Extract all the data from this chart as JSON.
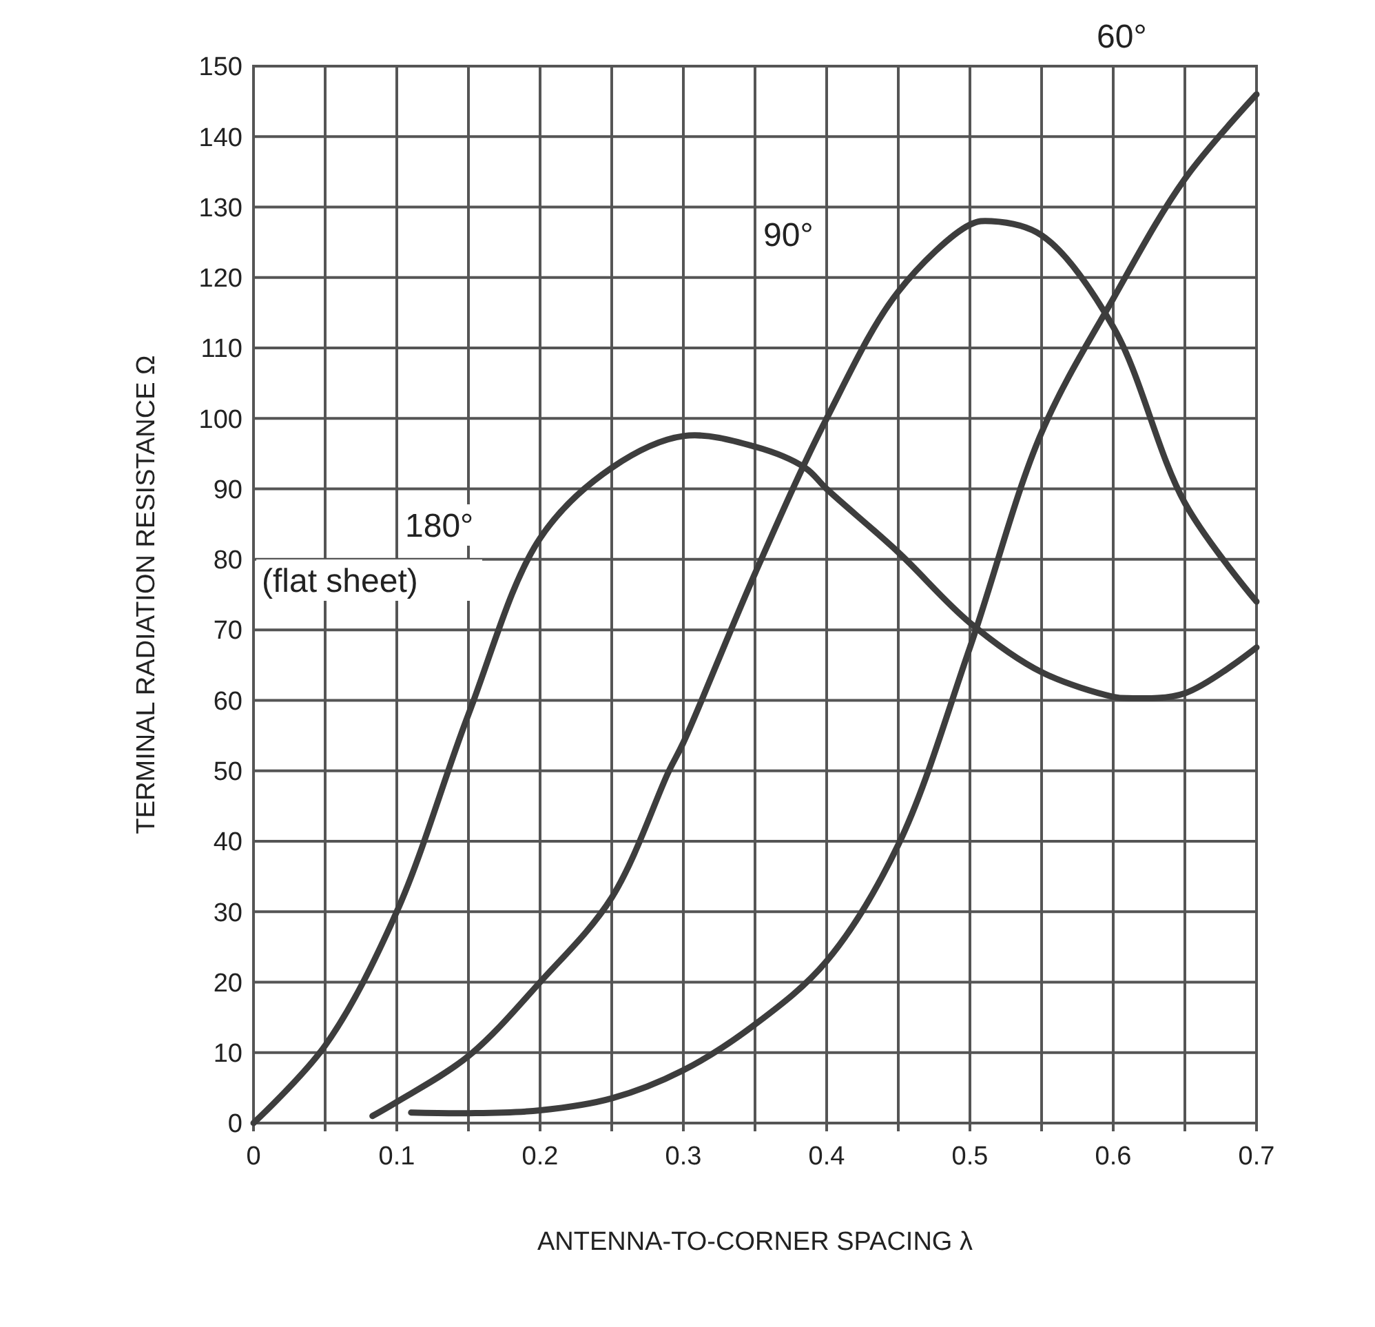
{
  "chart_data": {
    "type": "line",
    "xlabel": "ANTENNA-TO-CORNER SPACING λ",
    "ylabel": "TERMINAL RADIATION RESISTANCE Ω",
    "xlim": [
      0,
      0.7
    ],
    "ylim": [
      0,
      150
    ],
    "xticks": [
      0,
      {
        "value": 0.05,
        "label": null
      },
      0.1,
      {
        "value": 0.15,
        "label": null
      },
      0.2,
      {
        "value": 0.25,
        "label": null
      },
      0.3,
      {
        "value": 0.35,
        "label": null
      },
      0.4,
      {
        "value": 0.45,
        "label": null
      },
      0.5,
      {
        "value": 0.55,
        "label": null
      },
      0.6,
      {
        "value": 0.65,
        "label": null
      },
      0.7
    ],
    "yticks": [
      0,
      10,
      20,
      30,
      40,
      50,
      60,
      70,
      80,
      90,
      100,
      110,
      120,
      130,
      140,
      150
    ],
    "grid": true,
    "marker": "none",
    "line_style": "solid",
    "series": [
      {
        "color": "#3d3d3d",
        "x": [
          0,
          0.05,
          0.1,
          0.15,
          0.2,
          0.25,
          0.3,
          0.35,
          0.385,
          0.4,
          0.45,
          0.5,
          0.55,
          0.6,
          0.61,
          0.65,
          0.7
        ],
        "values": [
          0,
          11,
          30,
          58,
          83,
          93,
          97.5,
          96,
          93,
          90,
          81,
          71,
          64,
          60.5,
          60.3,
          61,
          67.5
        ]
      },
      {
        "color": "#3d3d3d",
        "x": [
          0.083,
          0.1,
          0.15,
          0.2,
          0.25,
          0.29,
          0.3,
          0.35,
          0.4,
          0.45,
          0.5,
          0.515,
          0.55,
          0.6,
          0.65,
          0.7
        ],
        "values": [
          1,
          3,
          9.5,
          20,
          32,
          50,
          54,
          78,
          100,
          118,
          127.5,
          128,
          126,
          113,
          88,
          74
        ]
      },
      {
        "color": "#3d3d3d",
        "x": [
          0.11,
          0.15,
          0.2,
          0.25,
          0.3,
          0.35,
          0.4,
          0.45,
          0.5,
          0.55,
          0.6,
          0.65,
          0.7
        ],
        "values": [
          1.5,
          1.4,
          1.8,
          3.5,
          7.5,
          14,
          23,
          39.5,
          67.5,
          98,
          117,
          134,
          146
        ]
      }
    ],
    "annotations": [
      "180°",
      "(flat sheet)",
      "90°",
      "60°"
    ]
  }
}
